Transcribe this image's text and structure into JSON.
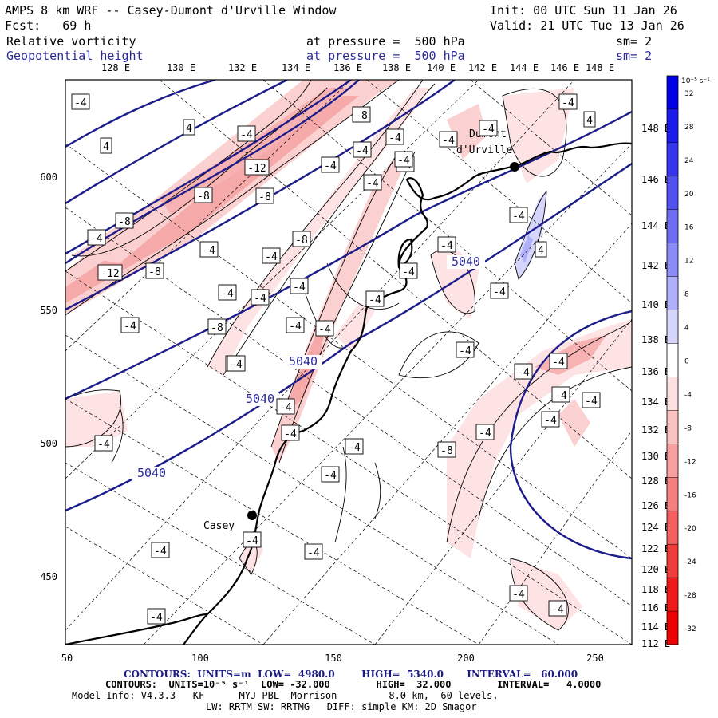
{
  "header": {
    "title": "AMPS 8 km WRF -- Casey-Dumont d'Urville Window",
    "init": "Init: 00 UTC Sun 11 Jan 26",
    "fcst": "Fcst:   69 h",
    "valid": "Valid: 21 UTC Tue 13 Jan 26",
    "field1_name": "Relative vorticity",
    "field1_level": "at pressure =  500 hPa",
    "field1_sm": "sm= 2",
    "field2_name": "Geopotential height",
    "field2_level": "at pressure =  500 hPa",
    "field2_sm": "sm= 2"
  },
  "map": {
    "top_lon_labels": [
      "128 E",
      "130 E",
      "132 E",
      "134 E",
      "136 E",
      "138 E",
      "140 E",
      "142 E",
      "144 E",
      "146 E",
      "148 E"
    ],
    "right_lat_labels": [
      "148 E",
      "146 E",
      "144 E",
      "142 E",
      "140 E",
      "138 E",
      "136 E",
      "134 E",
      "132 E",
      "130 E",
      "128 E",
      "126 E",
      "124 E",
      "122 E",
      "120 E",
      "118 E",
      "116 E",
      "114 E",
      "112 E"
    ],
    "x_grid_labels": [
      "50",
      "100",
      "150",
      "200",
      "250"
    ],
    "y_grid_labels": [
      "600",
      "550",
      "500",
      "450"
    ],
    "stations": [
      {
        "name": "Dumont\nd'Urville"
      },
      {
        "name": "Casey"
      }
    ],
    "height_contour_labels": [
      "5040",
      "5040",
      "5040",
      "5040"
    ],
    "vorticity_labels": [
      "-4",
      "4",
      "-4",
      "4",
      "-8",
      "-4",
      "-4",
      "-12",
      "-8",
      "-4",
      "-8",
      "-4",
      "-4",
      "-12",
      "-8",
      "-4",
      "-8",
      "-4",
      "-8",
      "-4",
      "-4",
      "-4",
      "-4",
      "-4",
      "-4",
      "-8",
      "-4",
      "-8",
      "-4",
      "-4",
      "-4",
      "-4",
      "-4",
      "-4",
      "-4",
      "-4",
      "4",
      "4",
      "-4",
      "-4",
      "-4",
      "-4",
      "-4",
      "-4",
      "-4",
      "-8",
      "-4",
      "-4",
      "-4",
      "-4",
      "-4",
      "-4",
      "-4",
      "-4",
      "-4",
      "-4",
      "-4",
      "-4",
      "-4"
    ]
  },
  "colorbar": {
    "unit_label": "10⁻⁵ s⁻¹",
    "ticks": [
      "32",
      "28",
      "24",
      "20",
      "16",
      "12",
      "8",
      "4",
      "0",
      "-4",
      "-8",
      "-12",
      "-16",
      "-20",
      "-24",
      "-28",
      "-32"
    ],
    "colors": [
      "#0000e8",
      "#1a1aee",
      "#3535f0",
      "#5151f2",
      "#6e6ef4",
      "#8c8cf7",
      "#b0b0fa",
      "#d6d6fc",
      "#ffffff",
      "#fde0e0",
      "#fbc2c2",
      "#f8a0a0",
      "#f67f7f",
      "#f45f5f",
      "#f23c3c",
      "#f01a1a",
      "#ee0000"
    ]
  },
  "footer": {
    "line1": "CONTOURS:  UNITS=m  LOW=  4980.0        HIGH=  5340.0       INTERVAL=   60.000",
    "line2": "CONTOURS:  UNITS=10⁻⁵ s⁻¹  LOW= -32.000        HIGH=  32.000        INTERVAL=   4.0000",
    "line3": "Model Info: V4.3.3   KF      MYJ PBL  Morrison         8.0 km,  60 levels,",
    "line4": "LW: RRTM SW: RRTMG   DIFF: simple KM: 2D Smagor"
  }
}
